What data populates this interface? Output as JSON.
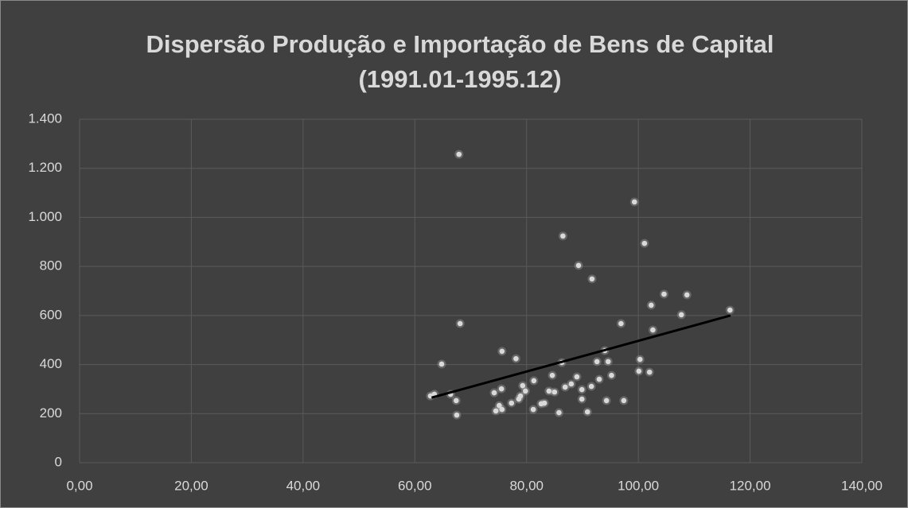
{
  "chart_data": {
    "type": "scatter",
    "title": [
      "Dispersão Produção e Importação de Bens de Capital",
      "(1991.01-1995.12)"
    ],
    "color": "#d9d9d9",
    "grid": true,
    "xlim": [
      0,
      140
    ],
    "xticks": [
      {
        "value": 0,
        "label": "0,00"
      },
      {
        "value": 20,
        "label": "20,00"
      },
      {
        "value": 40,
        "label": "40,00"
      },
      {
        "value": 60,
        "label": "60,00"
      },
      {
        "value": 80,
        "label": "80,00"
      },
      {
        "value": 100,
        "label": "100,00"
      },
      {
        "value": 120,
        "label": "120,00"
      },
      {
        "value": 140,
        "label": "140,00"
      }
    ],
    "ylim": [
      0,
      1400
    ],
    "yticks": [
      0,
      200,
      400,
      600,
      800,
      {
        "value": 1000,
        "label": "1.000"
      },
      {
        "value": 1200,
        "label": "1.200"
      },
      {
        "value": 1400,
        "label": "1.400"
      }
    ],
    "x": [
      62.8,
      63.5,
      64.8,
      66.4,
      67.4,
      67.5,
      67.9,
      68.1,
      75.6,
      78.1,
      74.2,
      75.5,
      74.5,
      75.1,
      75.6,
      77.3,
      78.6,
      78.9,
      79.3,
      79.8,
      81.3,
      81.2,
      82.6,
      83.2,
      84.0,
      84.6,
      85.0,
      85.8,
      86.3,
      86.5,
      86.9,
      88.0,
      89.0,
      89.3,
      89.9,
      89.9,
      90.9,
      91.6,
      91.7,
      92.6,
      93.0,
      94.0,
      94.3,
      94.6,
      95.2,
      96.9,
      97.4,
      99.3,
      100.1,
      100.3,
      101.1,
      102.0,
      102.3,
      102.6,
      104.6,
      107.7,
      108.7,
      116.4
    ],
    "values": [
      272,
      279,
      402,
      279,
      253,
      194,
      1257,
      567,
      454,
      424,
      285,
      301,
      211,
      233,
      217,
      243,
      259,
      272,
      314,
      292,
      334,
      217,
      240,
      243,
      292,
      356,
      288,
      204,
      408,
      924,
      308,
      321,
      350,
      804,
      298,
      259,
      207,
      311,
      749,
      412,
      340,
      457,
      253,
      412,
      356,
      567,
      253,
      1063,
      373,
      421,
      894,
      369,
      642,
      541,
      687,
      603,
      684,
      622
    ],
    "trendline": {
      "color": "#000000",
      "x": [
        63,
        116.5
      ],
      "values": [
        265,
        600
      ]
    }
  }
}
